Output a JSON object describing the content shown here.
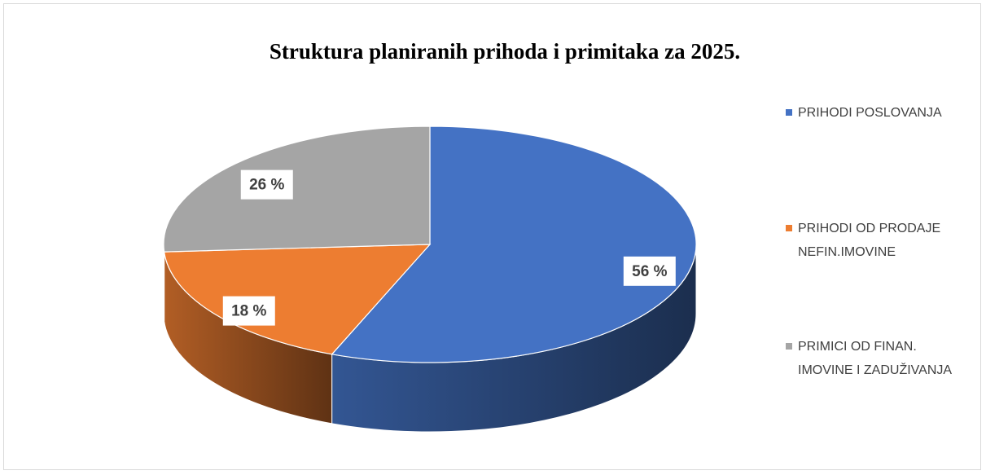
{
  "chart_data": {
    "type": "pie",
    "title": "Struktura planiranih prihoda i primitaka za 2025.",
    "categories": [
      "PRIHODI POSLOVANJA",
      "PRIHODI OD PRODAJE NEFIN.IMOVINE",
      "PRIMICI OD FINAN. IMOVINE I ZADUŽIVANJA"
    ],
    "values": [
      56,
      18,
      26
    ],
    "value_labels": [
      "56 %",
      "18 %",
      "26 %"
    ],
    "colors": [
      "#4472c4",
      "#ed7d31",
      "#a5a5a5"
    ],
    "legend": "right"
  }
}
